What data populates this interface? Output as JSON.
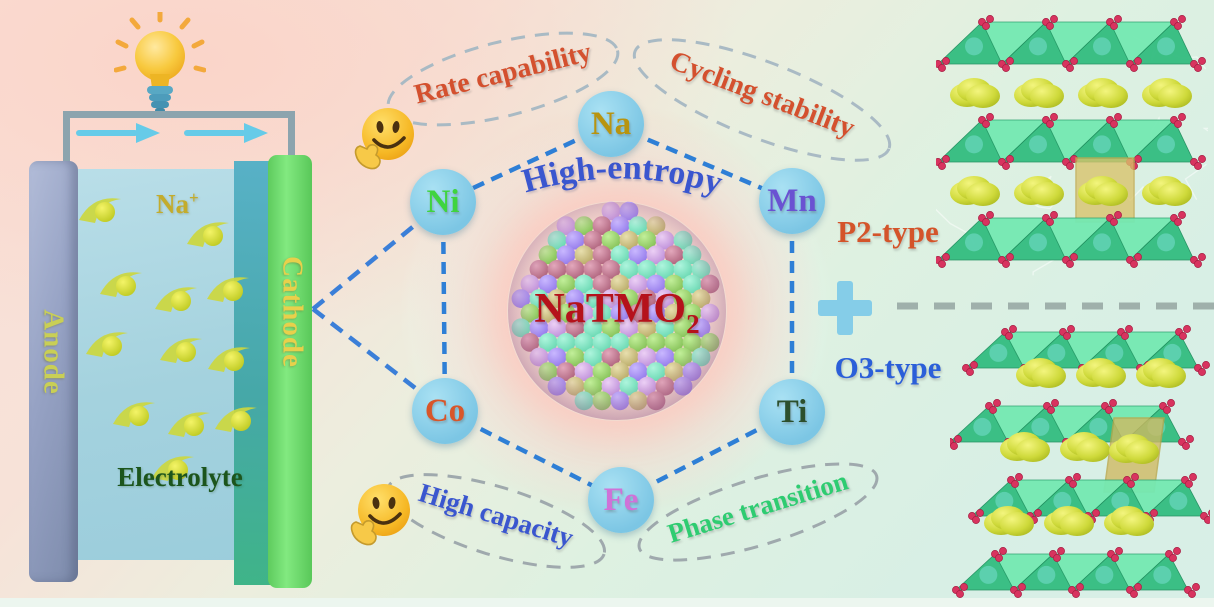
{
  "battery": {
    "anode_label": "Anode",
    "cathode_label": "Cathode",
    "electrolyte_label": "Electrolyte",
    "ion_label": "Na",
    "ion_charge": "+"
  },
  "hexagon": {
    "center_label": "High-entropy",
    "center_label_color": "#3a56cf",
    "formula": {
      "base": "NaTMO",
      "subscript": "2"
    },
    "formula_color": "#b5121b",
    "elements": [
      {
        "symbol": "Na",
        "color": "#b8940f"
      },
      {
        "symbol": "Ni",
        "color": "#3fd43f"
      },
      {
        "symbol": "Mn",
        "color": "#6a52d2"
      },
      {
        "symbol": "Co",
        "color": "#d8562a"
      },
      {
        "symbol": "Ti",
        "color": "#2c4f2c"
      },
      {
        "symbol": "Fe",
        "color": "#cf72d8"
      }
    ]
  },
  "badges": [
    {
      "label": "Rate capability",
      "color": "#d4502e"
    },
    {
      "label": "Cycling stability",
      "color": "#d4502e"
    },
    {
      "label": "High capacity",
      "color": "#3a56cf"
    },
    {
      "label": "Phase transition",
      "color": "#2ecc71"
    }
  ],
  "right_panel": {
    "p2_label": "P2-type",
    "p2_color": "#d4542a",
    "o3_label": "O3-type",
    "o3_color": "#2b5fd9",
    "plus_color": "#85cde8"
  }
}
